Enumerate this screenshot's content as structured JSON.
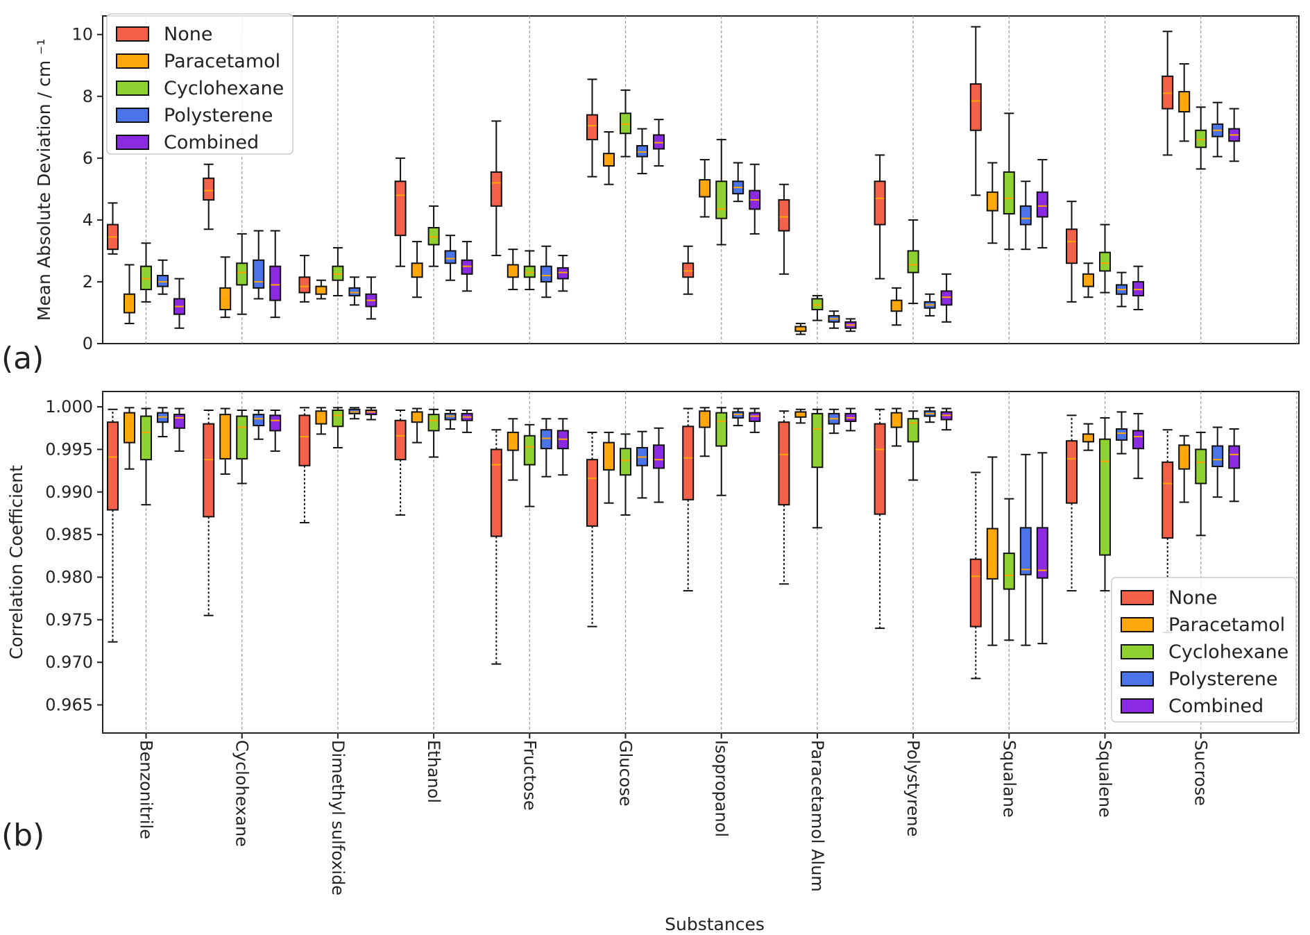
{
  "chart_data": [
    {
      "panel_label": "(a)",
      "type": "box",
      "ylabel": "Mean Absolute Deviation / cm ⁻¹",
      "ylim": [
        0,
        10.6
      ],
      "yticks": [
        0,
        2,
        4,
        6,
        8,
        10
      ],
      "ytick_labels": [
        "0",
        "2",
        "4",
        "6",
        "8",
        "10"
      ],
      "legend_position": "upper-left",
      "series": [
        {
          "name": "None",
          "color": "#f4614a",
          "boxes": [
            [
              2.9,
              3.05,
              3.45,
              3.85,
              4.55
            ],
            [
              3.7,
              4.65,
              4.95,
              5.35,
              5.8
            ],
            [
              1.35,
              1.65,
              1.85,
              2.15,
              2.85
            ],
            [
              2.5,
              3.5,
              4.8,
              5.25,
              6.0
            ],
            [
              2.85,
              4.45,
              5.2,
              5.55,
              7.2
            ],
            [
              5.4,
              6.6,
              7.05,
              7.4,
              8.55
            ],
            [
              1.6,
              2.15,
              2.35,
              2.6,
              3.15
            ],
            [
              2.25,
              3.65,
              4.1,
              4.65,
              5.15
            ],
            [
              2.1,
              3.85,
              4.7,
              5.25,
              6.1
            ],
            [
              4.8,
              6.9,
              7.85,
              8.4,
              10.25
            ],
            [
              1.35,
              2.6,
              3.3,
              3.7,
              4.6
            ],
            [
              6.1,
              7.6,
              8.1,
              8.65,
              10.1
            ]
          ]
        },
        {
          "name": "Paracetamol",
          "color": "#ffa80d",
          "boxes": [
            [
              0.65,
              1.0,
              1.3,
              1.6,
              2.55
            ],
            [
              0.85,
              1.1,
              1.45,
              1.8,
              2.8
            ],
            [
              1.45,
              1.6,
              1.7,
              1.85,
              2.05
            ],
            [
              1.5,
              2.15,
              2.35,
              2.6,
              3.3
            ],
            [
              1.75,
              2.15,
              2.35,
              2.55,
              3.05
            ],
            [
              5.15,
              5.75,
              5.95,
              6.15,
              6.85
            ],
            [
              4.1,
              4.75,
              5.05,
              5.3,
              5.95
            ],
            [
              0.3,
              0.4,
              0.45,
              0.55,
              0.65
            ],
            [
              0.6,
              1.05,
              1.2,
              1.4,
              1.8
            ],
            [
              3.25,
              4.3,
              4.65,
              4.9,
              5.85
            ],
            [
              1.5,
              1.85,
              2.05,
              2.25,
              2.6
            ],
            [
              6.55,
              7.5,
              7.8,
              8.15,
              9.05
            ]
          ]
        },
        {
          "name": "Cyclohexane",
          "color": "#8fd130",
          "boxes": [
            [
              1.35,
              1.75,
              2.1,
              2.5,
              3.25
            ],
            [
              0.95,
              1.9,
              2.3,
              2.6,
              3.55
            ],
            [
              1.55,
              2.05,
              2.25,
              2.5,
              3.1
            ],
            [
              2.5,
              3.2,
              3.45,
              3.75,
              4.45
            ],
            [
              1.75,
              2.15,
              2.3,
              2.5,
              3.0
            ],
            [
              6.05,
              6.8,
              7.1,
              7.45,
              8.2
            ],
            [
              3.2,
              4.05,
              4.35,
              5.25,
              6.6
            ],
            [
              0.75,
              1.1,
              1.25,
              1.45,
              1.55
            ],
            [
              1.3,
              2.3,
              2.55,
              3.0,
              4.0
            ],
            [
              3.05,
              4.2,
              4.7,
              5.55,
              7.45
            ],
            [
              1.65,
              2.35,
              2.6,
              2.95,
              3.85
            ],
            [
              5.65,
              6.35,
              6.6,
              6.9,
              7.65
            ]
          ]
        },
        {
          "name": "Polysterene",
          "color": "#4a74e8",
          "boxes": [
            [
              1.6,
              1.85,
              2.0,
              2.2,
              2.7
            ],
            [
              1.45,
              1.8,
              2.0,
              2.7,
              3.65
            ],
            [
              1.25,
              1.55,
              1.65,
              1.8,
              2.15
            ],
            [
              2.05,
              2.6,
              2.75,
              3.0,
              3.5
            ],
            [
              1.5,
              2.0,
              2.2,
              2.5,
              3.15
            ],
            [
              5.5,
              6.05,
              6.2,
              6.4,
              6.95
            ],
            [
              4.6,
              4.85,
              5.05,
              5.25,
              5.85
            ],
            [
              0.5,
              0.7,
              0.8,
              0.9,
              1.05
            ],
            [
              0.9,
              1.15,
              1.25,
              1.35,
              1.6
            ],
            [
              3.05,
              3.85,
              4.05,
              4.45,
              5.25
            ],
            [
              1.2,
              1.6,
              1.75,
              1.9,
              2.3
            ],
            [
              6.05,
              6.7,
              6.9,
              7.1,
              7.8
            ]
          ]
        },
        {
          "name": "Combined",
          "color": "#8a2be2",
          "boxes": [
            [
              0.5,
              0.95,
              1.2,
              1.45,
              2.1
            ],
            [
              0.85,
              1.4,
              1.9,
              2.5,
              3.65
            ],
            [
              0.8,
              1.2,
              1.4,
              1.6,
              2.15
            ],
            [
              1.7,
              2.25,
              2.5,
              2.7,
              3.3
            ],
            [
              1.7,
              2.1,
              2.3,
              2.45,
              2.85
            ],
            [
              5.75,
              6.3,
              6.5,
              6.75,
              7.25
            ],
            [
              3.55,
              4.35,
              4.65,
              4.95,
              5.8
            ],
            [
              0.4,
              0.5,
              0.6,
              0.7,
              0.8
            ],
            [
              0.7,
              1.25,
              1.5,
              1.7,
              2.25
            ],
            [
              3.1,
              4.1,
              4.45,
              4.9,
              5.95
            ],
            [
              1.1,
              1.55,
              1.75,
              2.0,
              2.5
            ],
            [
              5.9,
              6.55,
              6.75,
              6.95,
              7.6
            ]
          ]
        }
      ]
    },
    {
      "panel_label": "(b)",
      "type": "box",
      "ylabel": "Correlation Coefficient",
      "xlabel": "Substances",
      "ylim": [
        0.9617,
        1.0018
      ],
      "yticks": [
        0.965,
        0.97,
        0.975,
        0.98,
        0.985,
        0.99,
        0.995,
        1.0
      ],
      "ytick_labels": [
        "0.965",
        "0.970",
        "0.975",
        "0.980",
        "0.985",
        "0.990",
        "0.995",
        "1.000"
      ],
      "legend_position": "lower-right",
      "series": [
        {
          "name": "None",
          "color": "#f4614a",
          "boxes": [
            [
              0.9724,
              0.9879,
              0.9941,
              0.9982,
              0.9997
            ],
            [
              0.9755,
              0.9871,
              0.9938,
              0.998,
              0.9996
            ],
            [
              0.9864,
              0.9931,
              0.9965,
              0.999,
              0.9999
            ],
            [
              0.9873,
              0.9938,
              0.9966,
              0.9984,
              0.9996
            ],
            [
              0.9698,
              0.9848,
              0.9932,
              0.995,
              0.9973
            ],
            [
              0.9742,
              0.986,
              0.9916,
              0.9938,
              0.997
            ],
            [
              0.9784,
              0.9891,
              0.994,
              0.9977,
              0.9998
            ],
            [
              0.9792,
              0.9885,
              0.9944,
              0.9982,
              0.9995
            ],
            [
              0.974,
              0.9874,
              0.995,
              0.998,
              0.9997
            ],
            [
              0.9681,
              0.9742,
              0.9801,
              0.9821,
              0.9923
            ],
            [
              0.9784,
              0.9887,
              0.9939,
              0.996,
              0.999
            ],
            [
              0.9735,
              0.9846,
              0.991,
              0.9935,
              0.9973
            ]
          ]
        },
        {
          "name": "Paracetamol",
          "color": "#ffa80d",
          "boxes": [
            [
              0.9927,
              0.9958,
              0.9978,
              0.9993,
              0.9999
            ],
            [
              0.9921,
              0.9939,
              0.9969,
              0.9991,
              0.9998
            ],
            [
              0.9968,
              0.998,
              0.9988,
              0.9995,
              0.9999
            ],
            [
              0.9958,
              0.9982,
              0.9988,
              0.9994,
              0.9998
            ],
            [
              0.9914,
              0.9949,
              0.9962,
              0.997,
              0.9986
            ],
            [
              0.9887,
              0.9926,
              0.9942,
              0.9958,
              0.997
            ],
            [
              0.9942,
              0.9976,
              0.9989,
              0.9995,
              0.9999
            ],
            [
              0.9981,
              0.9988,
              0.9991,
              0.9994,
              0.9997
            ],
            [
              0.9954,
              0.9976,
              0.9986,
              0.9993,
              0.9998
            ],
            [
              0.972,
              0.9798,
              0.9815,
              0.9857,
              0.9941
            ],
            [
              0.9949,
              0.9959,
              0.9964,
              0.9968,
              0.998
            ],
            [
              0.9888,
              0.9927,
              0.9941,
              0.9955,
              0.9966
            ]
          ]
        },
        {
          "name": "Cyclohexane",
          "color": "#8fd130",
          "boxes": [
            [
              0.9885,
              0.9938,
              0.997,
              0.9989,
              0.9998
            ],
            [
              0.991,
              0.9939,
              0.9976,
              0.9989,
              0.9996
            ],
            [
              0.9952,
              0.9977,
              0.999,
              0.9996,
              0.9999
            ],
            [
              0.9941,
              0.9972,
              0.9984,
              0.9991,
              0.9997
            ],
            [
              0.9883,
              0.9932,
              0.9953,
              0.9966,
              0.9979
            ],
            [
              0.9873,
              0.992,
              0.9937,
              0.9951,
              0.9968
            ],
            [
              0.9896,
              0.9954,
              0.9983,
              0.9993,
              0.9999
            ],
            [
              0.9858,
              0.9929,
              0.9974,
              0.9992,
              0.9997
            ],
            [
              0.9914,
              0.9959,
              0.9981,
              0.9986,
              0.9995
            ],
            [
              0.9726,
              0.9786,
              0.9802,
              0.9828,
              0.9892
            ],
            [
              0.9784,
              0.9826,
              0.9936,
              0.9962,
              0.9987
            ],
            [
              0.9849,
              0.991,
              0.9935,
              0.995,
              0.997
            ]
          ]
        },
        {
          "name": "Polysterene",
          "color": "#4a74e8",
          "boxes": [
            [
              0.9965,
              0.9982,
              0.9988,
              0.9993,
              0.9999
            ],
            [
              0.9962,
              0.9978,
              0.9986,
              0.9991,
              0.9996
            ],
            [
              0.9986,
              0.9992,
              0.9994,
              0.9997,
              0.9999
            ],
            [
              0.9974,
              0.9985,
              0.9989,
              0.9992,
              0.9996
            ],
            [
              0.9918,
              0.9951,
              0.9963,
              0.9973,
              0.9986
            ],
            [
              0.9893,
              0.9931,
              0.9941,
              0.9952,
              0.9971
            ],
            [
              0.9978,
              0.9987,
              0.9991,
              0.9994,
              0.9998
            ],
            [
              0.9969,
              0.998,
              0.9986,
              0.9992,
              0.9997
            ],
            [
              0.9982,
              0.9989,
              0.9992,
              0.9995,
              0.9999
            ],
            [
              0.972,
              0.9803,
              0.9809,
              0.9858,
              0.9944
            ],
            [
              0.9945,
              0.9961,
              0.9969,
              0.9974,
              0.9994
            ],
            [
              0.9894,
              0.993,
              0.9938,
              0.9954,
              0.9976
            ]
          ]
        },
        {
          "name": "Combined",
          "color": "#8a2be2",
          "boxes": [
            [
              0.9948,
              0.9975,
              0.9987,
              0.9991,
              0.9998
            ],
            [
              0.9948,
              0.9972,
              0.9984,
              0.999,
              0.9996
            ],
            [
              0.9985,
              0.9991,
              0.9994,
              0.9996,
              0.9999
            ],
            [
              0.997,
              0.9984,
              0.9988,
              0.9992,
              0.9996
            ],
            [
              0.992,
              0.9951,
              0.9962,
              0.9972,
              0.9986
            ],
            [
              0.9888,
              0.9928,
              0.9938,
              0.9955,
              0.9975
            ],
            [
              0.997,
              0.9983,
              0.9989,
              0.9993,
              0.9998
            ],
            [
              0.9972,
              0.9983,
              0.9987,
              0.9992,
              0.9998
            ],
            [
              0.9973,
              0.9985,
              0.999,
              0.9994,
              0.9998
            ],
            [
              0.9722,
              0.9799,
              0.9808,
              0.9858,
              0.9946
            ],
            [
              0.9916,
              0.9951,
              0.9965,
              0.9972,
              0.9992
            ],
            [
              0.9889,
              0.9928,
              0.9944,
              0.9954,
              0.9974
            ]
          ]
        }
      ]
    }
  ],
  "categories": [
    "Benzonitrile",
    "Cyclohexane",
    "Dimethyl sulfoxide",
    "Ethanol",
    "Fructose",
    "Glucose",
    "Isopropanol",
    "Paracetamol Alum",
    "Polystyrene",
    "Squalane",
    "Squalene",
    "Sucrose"
  ],
  "legend_entries": [
    "None",
    "Paracetamol",
    "Cyclohexane",
    "Polysterene",
    "Combined"
  ],
  "legend_colors": [
    "#f4614a",
    "#ffa80d",
    "#8fd130",
    "#4a74e8",
    "#8a2be2"
  ],
  "median_color": "#ffa500"
}
